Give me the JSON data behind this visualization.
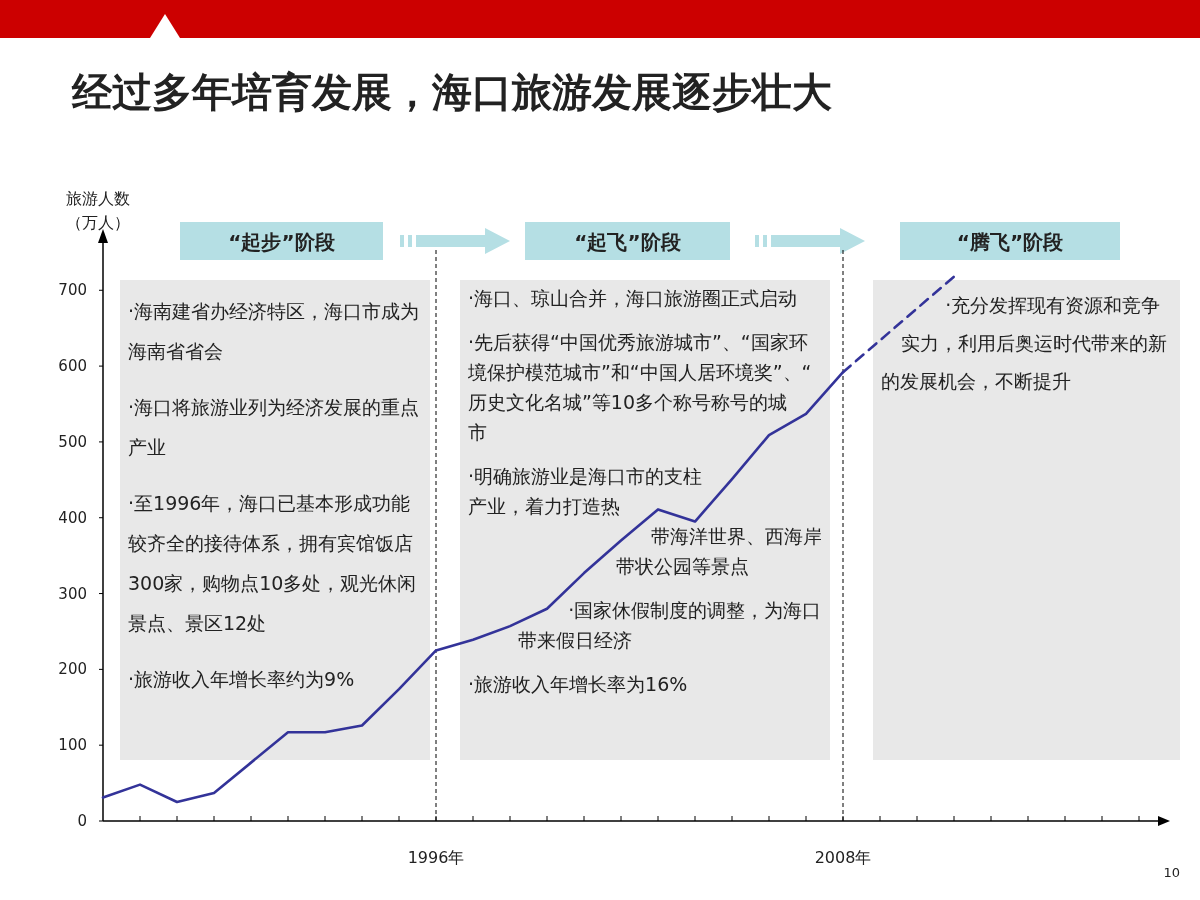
{
  "chart_data": {
    "type": "line",
    "title": "经过多年培育发展，海口旅游发展逐步壮大",
    "ylabel": "旅游人数（万人）",
    "categories": [
      null,
      null,
      null,
      null,
      null,
      null,
      null,
      null,
      null,
      "1996年",
      null,
      null,
      null,
      null,
      null,
      null,
      null,
      null,
      null,
      null,
      "2008年",
      null,
      null,
      null,
      null,
      null,
      null,
      null,
      null
    ],
    "series": [
      {
        "color": "#333399",
        "values": [
          31,
          48,
          25,
          37,
          77,
          117,
          117,
          126,
          174,
          225,
          239,
          257,
          280,
          327,
          370,
          411,
          395,
          451,
          509,
          537,
          592,
          null,
          null,
          null,
          null,
          null,
          null,
          null,
          null
        ]
      },
      {
        "color": "#333399",
        "line_style": "dashed",
        "values": [
          null,
          null,
          null,
          null,
          null,
          null,
          null,
          null,
          null,
          null,
          null,
          null,
          null,
          null,
          null,
          null,
          null,
          null,
          null,
          null,
          592,
          634,
          676,
          718,
          null,
          null,
          null,
          null,
          null
        ]
      }
    ],
    "ylim": [
      0,
      765
    ],
    "yticks": [
      0,
      100,
      200,
      300,
      400,
      500,
      600,
      700
    ],
    "grid": false,
    "ref_lines": [
      {
        "axis": "x",
        "value": "1996年",
        "color": "#000000",
        "line_style": "dashed"
      },
      {
        "axis": "x",
        "value": "2008年",
        "color": "#000000",
        "line_style": "dashed"
      }
    ],
    "annotations": [
      "“起步”阶段",
      "“起飞”阶段",
      "“腾飞”阶段",
      "·海南建省办经济特区，海口市成为海南省省会",
      "·海口将旅游业列为经济发展的重点产业",
      "·至1996年，海口已基本形成功能较齐全的接待体系，拥有宾馆饭店300家，购物点10多处，观光休闲景点、景区12处",
      "·旅游收入年增长率约为9%",
      "·海口、琼山合并，海口旅游圈正式启动",
      "·先后获得“中国优秀旅游城市”、“国家环境保护模范城市”和“中国人居环境奖”、“历史文化名城”等10多个称号称号的城市",
      "·明确旅游业是海口市的支柱产业，着力打造热带海洋世界、西海岸带状公园等景点",
      "·国家休假制度的调整，为海口带来假日经济",
      "·旅游收入年增长率为16%",
      "·充分发挥现有资源和竞争实力，利用后奥运时代带来的新的发展机会，不断提升",
      "10"
    ]
  }
}
